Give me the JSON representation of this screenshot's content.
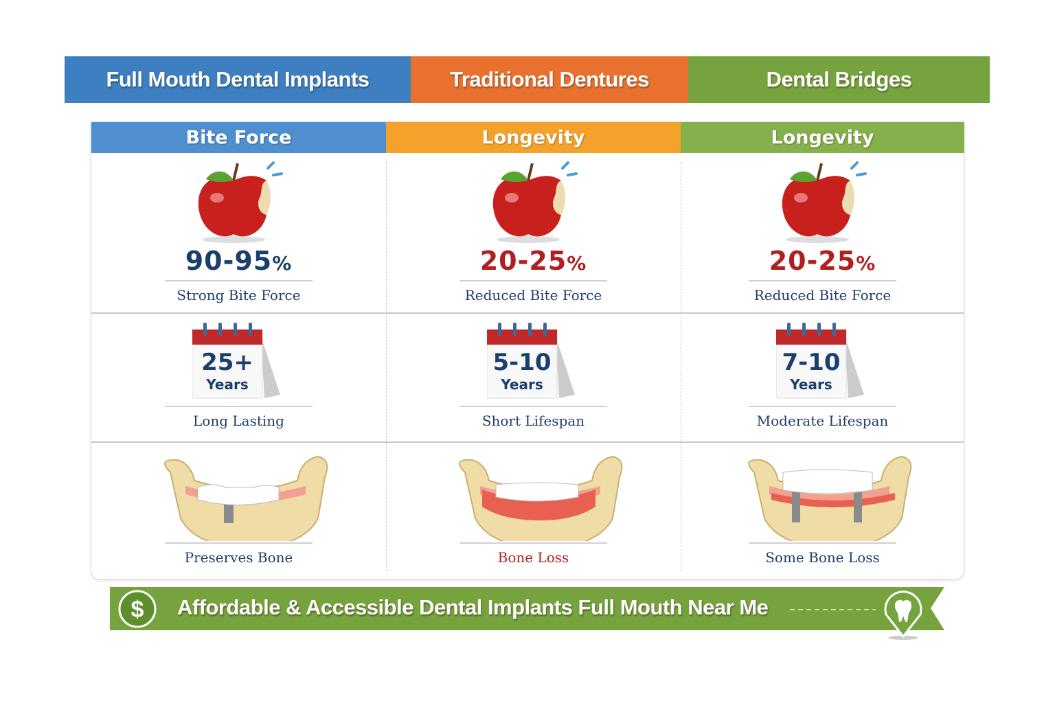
{
  "tabs": [
    {
      "label": "Full Mouth Dental Implants",
      "color": "#3d7fc1"
    },
    {
      "label": "Traditional Dentures",
      "color": "#e87130"
    },
    {
      "label": "Dental Bridges",
      "color": "#76a33d"
    }
  ],
  "columns": [
    {
      "header": "Bite Force",
      "header_color": "#4f8fcf",
      "bite_value": "90-95",
      "bite_unit": "%",
      "bite_value_color": "#1b3f6b",
      "bite_label": "Strong Bite Force",
      "years": "25+",
      "years_unit": "Years",
      "lifespan_label": "Long Lasting",
      "bone_label": "Preserves Bone",
      "bone_label_color": "#1f3f6a",
      "bone_icon": "jaw-implant-icon"
    },
    {
      "header": "Longevity",
      "header_color": "#f4a22c",
      "bite_value": "20-25",
      "bite_unit": "%",
      "bite_value_color": "#b02020",
      "bite_label": "Reduced Bite Force",
      "years": "5-10",
      "years_unit": "Years",
      "lifespan_label": "Short Lifespan",
      "bone_label": "Bone Loss",
      "bone_label_color": "#b02020",
      "bone_icon": "jaw-denture-icon"
    },
    {
      "header": "Longevity",
      "header_color": "#86b04b",
      "bite_value": "20-25",
      "bite_unit": "%",
      "bite_value_color": "#b02020",
      "bite_label": "Reduced Bite Force",
      "years": "7-10",
      "years_unit": "Years",
      "lifespan_label": "Moderate Lifespan",
      "bone_label": "Some Bone Loss",
      "bone_label_color": "#1f3f6a",
      "bone_icon": "jaw-bridge-icon"
    }
  ],
  "banner": {
    "text": "Affordable & Accessible Dental Implants Full Mouth Near Me",
    "color": "#76a33d",
    "left_icon": "dollar-icon",
    "right_icon": "tooth-location-pin-icon"
  }
}
